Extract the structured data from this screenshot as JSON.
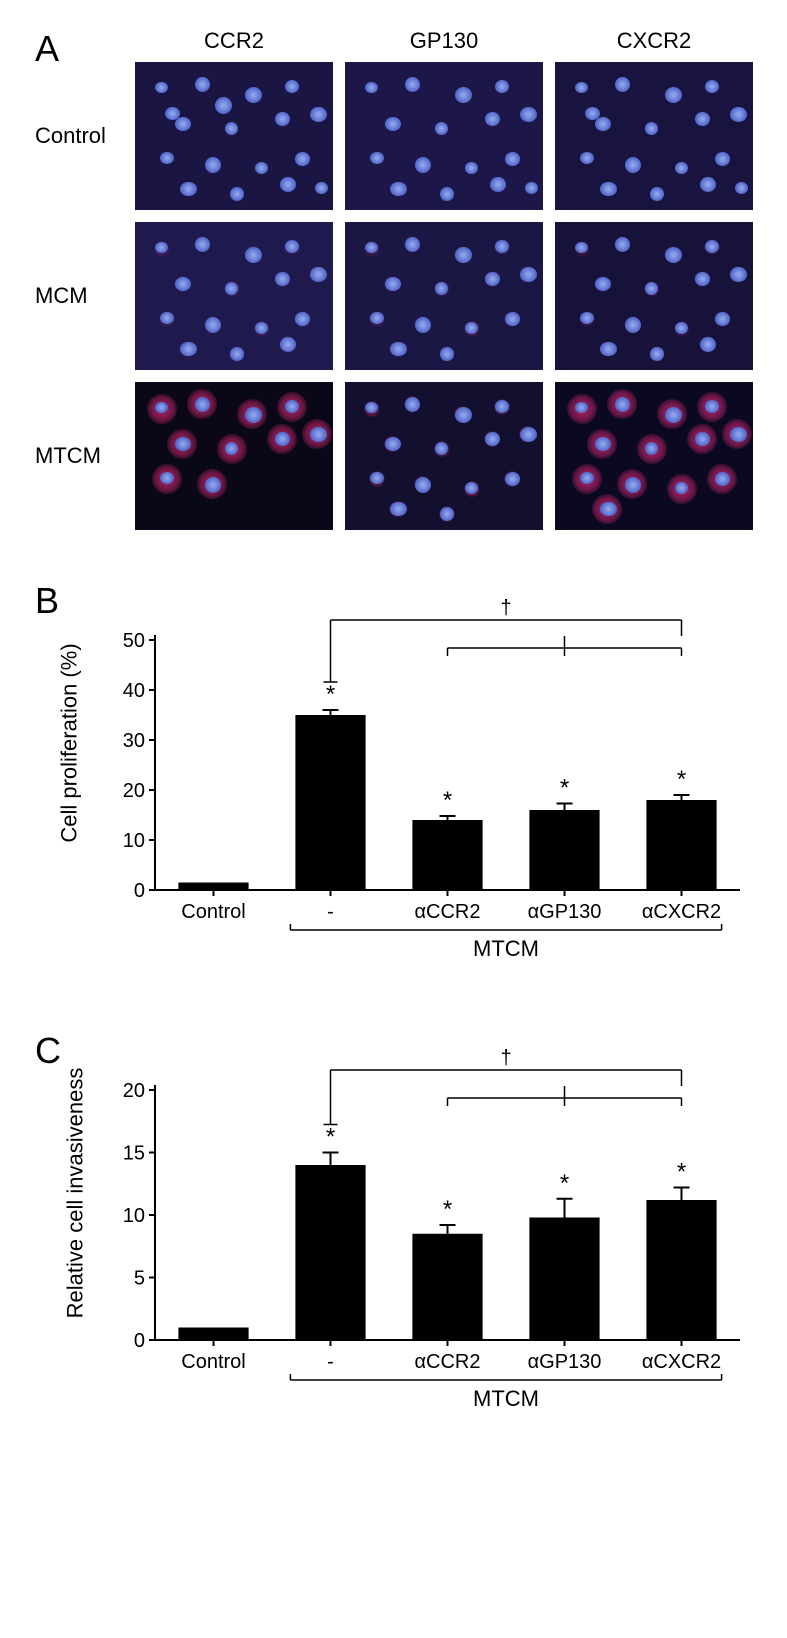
{
  "panelA": {
    "label": "A",
    "columns": [
      "CCR2",
      "GP130",
      "CXCR2"
    ],
    "rows": [
      "Control",
      "MCM",
      "MTCM"
    ],
    "bg_dark": "#0d0a1f",
    "bg_medium": "#1b1640",
    "nucleus_color": "#6a80d8",
    "cyto_color": "#d52c78",
    "cell_grid": [
      [
        {
          "bg": "#1a1542",
          "n": 18,
          "red": 0
        },
        {
          "bg": "#1c1748",
          "n": 16,
          "red": 0
        },
        {
          "bg": "#18143f",
          "n": 17,
          "red": 0
        }
      ],
      [
        {
          "bg": "#1e1a4e",
          "n": 15,
          "red": 1
        },
        {
          "bg": "#1b1745",
          "n": 14,
          "red": 1
        },
        {
          "bg": "#16123a",
          "n": 15,
          "red": 1
        }
      ],
      [
        {
          "bg": "#0a0818",
          "n": 10,
          "red": 3
        },
        {
          "bg": "#12102e",
          "n": 14,
          "red": 2
        },
        {
          "bg": "#0b0920",
          "n": 13,
          "red": 3
        }
      ]
    ]
  },
  "panelB": {
    "label": "B",
    "type": "bar",
    "ylabel": "Cell proliferation (%)",
    "ylim": [
      0,
      50
    ],
    "ytick_step": 10,
    "categories": [
      "Control",
      "-",
      "αCCR2",
      "αGP130",
      "αCXCR2"
    ],
    "values": [
      1.5,
      35,
      14,
      16,
      18
    ],
    "errors": [
      0,
      1,
      0.8,
      1.3,
      1
    ],
    "stars": [
      false,
      true,
      true,
      true,
      true
    ],
    "bar_color": "#000000",
    "group_label": "MTCM",
    "group_start_index": 1,
    "group_end_index": 4,
    "dagger_from_index": 1,
    "dagger_to_indices": [
      2,
      3,
      4
    ],
    "bar_width": 0.6,
    "axis_color": "#000000",
    "label_fontsize": 22,
    "tick_fontsize": 20,
    "star_symbol": "*",
    "dagger_symbol": "†"
  },
  "panelC": {
    "label": "C",
    "type": "bar",
    "ylabel": "Relative cell invasiveness",
    "ylim": [
      0,
      20
    ],
    "ytick_step": 5,
    "categories": [
      "Control",
      "-",
      "αCCR2",
      "αGP130",
      "αCXCR2"
    ],
    "values": [
      1,
      14,
      8.5,
      9.8,
      11.2
    ],
    "errors": [
      0,
      1,
      0.7,
      1.5,
      1
    ],
    "stars": [
      false,
      true,
      true,
      true,
      true
    ],
    "bar_color": "#000000",
    "group_label": "MTCM",
    "group_start_index": 1,
    "group_end_index": 4,
    "dagger_from_index": 1,
    "dagger_to_indices": [
      2,
      3,
      4
    ],
    "bar_width": 0.6,
    "axis_color": "#000000",
    "label_fontsize": 22,
    "tick_fontsize": 20,
    "star_symbol": "*",
    "dagger_symbol": "†"
  }
}
